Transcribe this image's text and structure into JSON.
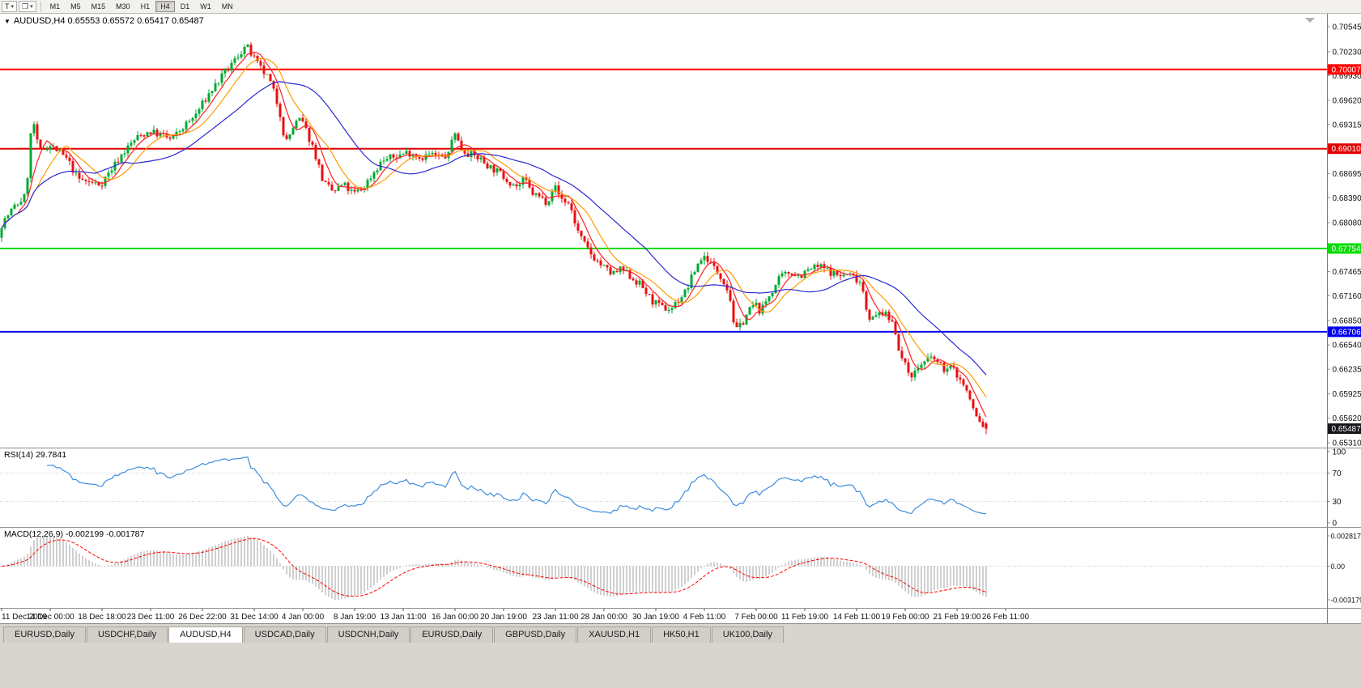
{
  "toolbar": {
    "template_button": "T",
    "timeframes": [
      "M1",
      "M5",
      "M15",
      "M30",
      "H1",
      "H4",
      "D1",
      "W1",
      "MN"
    ],
    "active_timeframe": "H4"
  },
  "chart": {
    "header": "AUDUSD,H4 0.65553 0.65572 0.65417 0.65487",
    "symbol": "AUDUSD",
    "period": "H4",
    "ohlc": {
      "open": "0.65553",
      "high": "0.65572",
      "low": "0.65417",
      "close": "0.65487"
    },
    "current_price": 0.65487,
    "current_price_label": "0.65487",
    "axis_ticks": [
      0.70545,
      0.7023,
      0.6993,
      0.6962,
      0.69315,
      0.6901,
      0.68695,
      0.6839,
      0.6808,
      0.67775,
      0.67465,
      0.6716,
      0.6685,
      0.6654,
      0.66235,
      0.65925,
      0.6562,
      0.6531
    ],
    "hlines": [
      {
        "price": 0.70007,
        "label": "0.70007",
        "color": "#ff0000"
      },
      {
        "price": 0.6901,
        "label": "0.69010",
        "color": "#e00000"
      },
      {
        "price": 0.67754,
        "label": "0.67754",
        "color": "#00dd00"
      },
      {
        "price": 0.66706,
        "label": "0.66706",
        "color": "#0000ee"
      }
    ]
  },
  "chart_data": {
    "type": "candlestick",
    "symbol": "AUDUSD",
    "timeframe": "H4",
    "price_range": [
      0.65249,
      0.70708
    ],
    "bars_total": 305,
    "seed": 7,
    "last_candle": [
      0.65553,
      0.65572,
      0.65417,
      0.65487
    ],
    "colors": {
      "up": "#00a933",
      "down": "#e81010"
    },
    "price_path": [
      [
        0,
        0.6803
      ],
      [
        4,
        0.6826
      ],
      [
        8,
        0.6842
      ],
      [
        10,
        0.6943
      ],
      [
        12,
        0.6896
      ],
      [
        15,
        0.6906
      ],
      [
        18,
        0.6898
      ],
      [
        21,
        0.6886
      ],
      [
        24,
        0.6863
      ],
      [
        28,
        0.6858
      ],
      [
        31,
        0.6856
      ],
      [
        34,
        0.6873
      ],
      [
        38,
        0.6896
      ],
      [
        42,
        0.6914
      ],
      [
        46,
        0.6923
      ],
      [
        50,
        0.6918
      ],
      [
        53,
        0.6912
      ],
      [
        56,
        0.6926
      ],
      [
        60,
        0.6941
      ],
      [
        62,
        0.6954
      ],
      [
        65,
        0.6973
      ],
      [
        68,
        0.6989
      ],
      [
        71,
        0.7004
      ],
      [
        74,
        0.7021
      ],
      [
        76,
        0.7031
      ],
      [
        78,
        0.7017
      ],
      [
        80,
        0.7004
      ],
      [
        83,
        0.6989
      ],
      [
        85,
        0.6967
      ],
      [
        87,
        0.6938
      ],
      [
        88,
        0.6906
      ],
      [
        91,
        0.6932
      ],
      [
        93,
        0.6938
      ],
      [
        95,
        0.6919
      ],
      [
        97,
        0.6899
      ],
      [
        100,
        0.6857
      ],
      [
        103,
        0.6846
      ],
      [
        106,
        0.6856
      ],
      [
        109,
        0.6844
      ],
      [
        112,
        0.6851
      ],
      [
        115,
        0.6869
      ],
      [
        118,
        0.6886
      ],
      [
        122,
        0.6891
      ],
      [
        126,
        0.6897
      ],
      [
        130,
        0.689
      ],
      [
        133,
        0.6894
      ],
      [
        136,
        0.6889
      ],
      [
        139,
        0.6894
      ],
      [
        140,
        0.693
      ],
      [
        142,
        0.6903
      ],
      [
        145,
        0.6894
      ],
      [
        148,
        0.6889
      ],
      [
        151,
        0.6879
      ],
      [
        154,
        0.6871
      ],
      [
        157,
        0.6861
      ],
      [
        160,
        0.6853
      ],
      [
        162,
        0.6863
      ],
      [
        164,
        0.6846
      ],
      [
        167,
        0.6839
      ],
      [
        169,
        0.6834
      ],
      [
        171,
        0.6856
      ],
      [
        173,
        0.6839
      ],
      [
        176,
        0.6831
      ],
      [
        178,
        0.6801
      ],
      [
        180,
        0.6783
      ],
      [
        183,
        0.6766
      ],
      [
        186,
        0.6753
      ],
      [
        189,
        0.6743
      ],
      [
        192,
        0.6749
      ],
      [
        195,
        0.6739
      ],
      [
        198,
        0.6729
      ],
      [
        201,
        0.6711
      ],
      [
        204,
        0.6701
      ],
      [
        207,
        0.6699
      ],
      [
        210,
        0.6713
      ],
      [
        212,
        0.6723
      ],
      [
        214,
        0.6743
      ],
      [
        216,
        0.6761
      ],
      [
        218,
        0.6766
      ],
      [
        220,
        0.6753
      ],
      [
        223,
        0.6739
      ],
      [
        225,
        0.6721
      ],
      [
        226,
        0.6701
      ],
      [
        227,
        0.6669
      ],
      [
        229,
        0.6681
      ],
      [
        231,
        0.6696
      ],
      [
        233,
        0.6706
      ],
      [
        235,
        0.6696
      ],
      [
        237,
        0.6713
      ],
      [
        239,
        0.6726
      ],
      [
        241,
        0.6739
      ],
      [
        244,
        0.6746
      ],
      [
        247,
        0.6741
      ],
      [
        250,
        0.6749
      ],
      [
        253,
        0.6753
      ],
      [
        256,
        0.6747
      ],
      [
        259,
        0.6741
      ],
      [
        262,
        0.6743
      ],
      [
        264,
        0.6739
      ],
      [
        266,
        0.6733
      ],
      [
        268,
        0.6691
      ],
      [
        270,
        0.6686
      ],
      [
        272,
        0.6697
      ],
      [
        274,
        0.6689
      ],
      [
        276,
        0.6681
      ],
      [
        278,
        0.6641
      ],
      [
        280,
        0.6623
      ],
      [
        282,
        0.6616
      ],
      [
        284,
        0.6629
      ],
      [
        286,
        0.6633
      ],
      [
        288,
        0.6639
      ],
      [
        290,
        0.6629
      ],
      [
        292,
        0.6623
      ],
      [
        294,
        0.6626
      ],
      [
        296,
        0.6613
      ],
      [
        298,
        0.6601
      ],
      [
        300,
        0.6579
      ],
      [
        302,
        0.6559
      ],
      [
        304,
        0.6549
      ]
    ],
    "moving_averages": [
      {
        "name": "fast-red",
        "period": 6,
        "color": "#ff2020"
      },
      {
        "name": "mid-orange",
        "period": 12,
        "color": "#ff9c00"
      },
      {
        "name": "slow-blue",
        "period": 30,
        "color": "#2a2ad4"
      }
    ],
    "rsi": {
      "label": "RSI(14) 29.7841",
      "period": 14,
      "last_value": 29.7841,
      "levels": [
        100,
        70,
        30,
        0
      ],
      "color": "#3e8ede"
    },
    "macd": {
      "label": "MACD(12,26,9) -0.002199 -0.001787",
      "fast": 12,
      "slow": 26,
      "signal": 9,
      "main_value": -0.002199,
      "signal_value": -0.001787,
      "axis_labels": [
        "0.0028170",
        "0.00",
        "-0.0031790"
      ],
      "histogram_color": "#a0a0a0",
      "signal_color": "#ff0000"
    },
    "time_labels": [
      {
        "bar": 0,
        "text": "11 Dec 2019"
      },
      {
        "bar": 15,
        "text": "14 Dec 00:00"
      },
      {
        "bar": 31,
        "text": "18 Dec 18:00"
      },
      {
        "bar": 46,
        "text": "23 Dec 11:00"
      },
      {
        "bar": 62,
        "text": "26 Dec 22:00"
      },
      {
        "bar": 78,
        "text": "31 Dec 14:00"
      },
      {
        "bar": 93,
        "text": "4 Jan 00:00"
      },
      {
        "bar": 109,
        "text": "8 Jan 19:00"
      },
      {
        "bar": 124,
        "text": "13 Jan 11:00"
      },
      {
        "bar": 140,
        "text": "16 Jan 00:00"
      },
      {
        "bar": 155,
        "text": "20 Jan 19:00"
      },
      {
        "bar": 171,
        "text": "23 Jan 11:00"
      },
      {
        "bar": 186,
        "text": "28 Jan 00:00"
      },
      {
        "bar": 202,
        "text": "30 Jan 19:00"
      },
      {
        "bar": 217,
        "text": "4 Feb 11:00"
      },
      {
        "bar": 233,
        "text": "7 Feb 00:00"
      },
      {
        "bar": 248,
        "text": "11 Feb 19:00"
      },
      {
        "bar": 264,
        "text": "14 Feb 11:00"
      },
      {
        "bar": 279,
        "text": "19 Feb 00:00"
      },
      {
        "bar": 295,
        "text": "21 Feb 19:00"
      },
      {
        "bar": 310,
        "text": "26 Feb 11:00"
      }
    ]
  },
  "tabs": {
    "items": [
      "EURUSD,Daily",
      "USDCHF,Daily",
      "AUDUSD,H4",
      "USDCAD,Daily",
      "USDCNH,Daily",
      "EURUSD,Daily",
      "GBPUSD,Daily",
      "XAUUSD,H1",
      "HK50,H1",
      "UK100,Daily"
    ],
    "active_index": 2,
    "active": "AUDUSD,H4"
  }
}
